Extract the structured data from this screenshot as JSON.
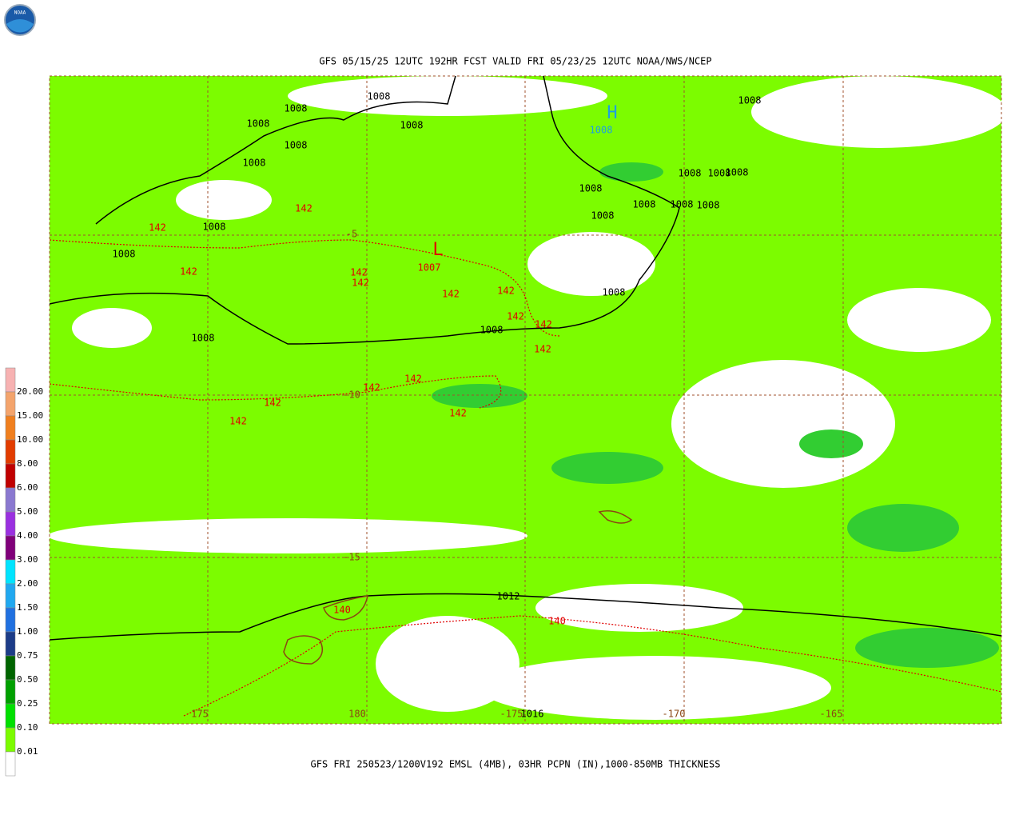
{
  "header": {
    "title": "GFS 05/15/25 12UTC 192HR FCST VALID FRI 05/23/25 12UTC NOAA/NWS/NCEP",
    "logo": "NOAA"
  },
  "footer": {
    "caption": "GFS FRI 250523/1200V192 EMSL (4MB), 03HR PCPN (IN),1000-850MB THICKNESS"
  },
  "legend": {
    "labels": [
      "20.00",
      "15.00",
      "10.00",
      "8.00",
      "6.00",
      "5.00",
      "4.00",
      "3.00",
      "2.00",
      "1.50",
      "1.00",
      "0.75",
      "0.50",
      "0.25",
      "0.10",
      "0.01"
    ],
    "colors": [
      "#f7b2b2",
      "#f4a46c",
      "#f07f1e",
      "#e23c00",
      "#c00000",
      "#8a78d0",
      "#9a30e0",
      "#80007a",
      "#00e4ff",
      "#20a8f0",
      "#2070e0",
      "#1c3c88",
      "#006400",
      "#00a000",
      "#00e000",
      "#7cfc00",
      "#ffffff"
    ]
  },
  "map": {
    "isobar_labels": [
      "1008",
      "1008",
      "1008",
      "1008",
      "1008",
      "1008",
      "1008",
      "1008",
      "1008",
      "1008",
      "1008",
      "1008",
      "1008",
      "1008",
      "1008",
      "1008",
      "1008",
      "1008",
      "1008",
      "1008",
      "1012",
      "1016"
    ],
    "high_label": "H",
    "high_value": "1008",
    "low_label": "L",
    "low_value": "1007",
    "thickness_labels": [
      "142",
      "142",
      "142",
      "142",
      "142",
      "142",
      "142",
      "142",
      "142",
      "142",
      "142",
      "142",
      "142",
      "142",
      "142",
      "140",
      "140"
    ],
    "lat_labels": [
      "-5",
      "-10",
      "-15"
    ],
    "lon_labels": [
      "175",
      "180",
      "-175",
      "-170",
      "-165"
    ]
  }
}
